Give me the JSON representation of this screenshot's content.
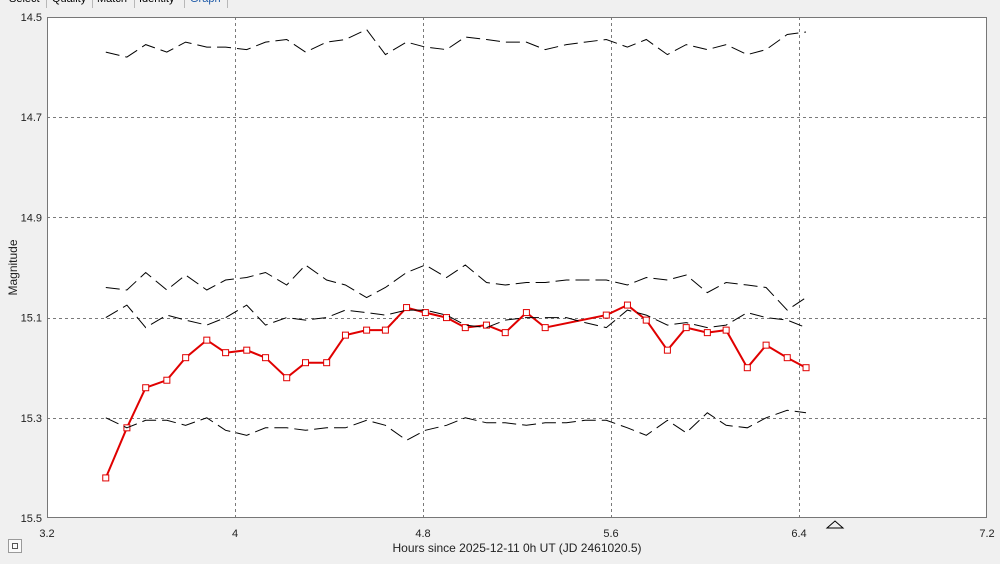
{
  "tabs": [
    {
      "label": "Select",
      "active": false
    },
    {
      "label": "Quality",
      "active": false
    },
    {
      "label": "Match",
      "active": false
    },
    {
      "label": "Identity",
      "active": false
    },
    {
      "label": "Graph",
      "active": true
    }
  ],
  "chart_data": {
    "type": "line",
    "xlabel": "Hours since 2025-12-11 0h UT (JD 2461020.5)",
    "ylabel": "Magnitude",
    "xlim": [
      3.2,
      7.2
    ],
    "ylim": [
      15.5,
      14.5
    ],
    "y_inverted": true,
    "grid": true,
    "x_ticks": [
      "3.2",
      "4",
      "4.8",
      "5.6",
      "6.4",
      "7.2"
    ],
    "y_ticks": [
      "14.5",
      "14.7",
      "14.9",
      "15.1",
      "15.3",
      "15.5"
    ],
    "colors": {
      "target": "#e00000",
      "comparison": "#000000"
    },
    "series": [
      {
        "role": "target",
        "style": "solid-with-square-markers",
        "x": [
          3.45,
          3.54,
          3.62,
          3.71,
          3.79,
          3.88,
          3.96,
          4.05,
          4.13,
          4.22,
          4.3,
          4.39,
          4.47,
          4.56,
          4.64,
          4.73,
          4.81,
          4.9,
          4.98,
          5.07,
          5.15,
          5.24,
          5.32,
          5.58,
          5.67,
          5.75,
          5.84,
          5.92,
          6.01,
          6.09,
          6.18,
          6.26,
          6.35,
          6.43
        ],
        "y": [
          15.42,
          15.32,
          15.24,
          15.225,
          15.18,
          15.145,
          15.17,
          15.165,
          15.18,
          15.22,
          15.19,
          15.19,
          15.135,
          15.125,
          15.125,
          15.08,
          15.09,
          15.1,
          15.12,
          15.115,
          15.13,
          15.09,
          15.12,
          15.095,
          15.075,
          15.105,
          15.165,
          15.12,
          15.13,
          15.125,
          15.2,
          15.155,
          15.18,
          15.2
        ]
      },
      {
        "role": "comparison",
        "style": "dashed",
        "x": [
          3.45,
          3.54,
          3.62,
          3.71,
          3.79,
          3.88,
          3.96,
          4.05,
          4.13,
          4.22,
          4.3,
          4.39,
          4.47,
          4.56,
          4.64,
          4.73,
          4.81,
          4.9,
          4.98,
          5.07,
          5.15,
          5.24,
          5.32,
          5.41,
          5.49,
          5.58,
          5.67,
          5.75,
          5.84,
          5.92,
          6.01,
          6.09,
          6.18,
          6.26,
          6.35,
          6.43
        ],
        "y": [
          14.57,
          14.58,
          14.555,
          14.57,
          14.55,
          14.56,
          14.56,
          14.565,
          14.55,
          14.545,
          14.57,
          14.55,
          14.545,
          14.525,
          14.575,
          14.55,
          14.56,
          14.565,
          14.54,
          14.545,
          14.55,
          14.55,
          14.565,
          14.555,
          14.55,
          14.545,
          14.56,
          14.545,
          14.575,
          14.555,
          14.565,
          14.555,
          14.575,
          14.565,
          14.535,
          14.53
        ]
      },
      {
        "role": "comparison",
        "style": "dashed",
        "x": [
          3.45,
          3.54,
          3.62,
          3.71,
          3.79,
          3.88,
          3.96,
          4.05,
          4.13,
          4.22,
          4.3,
          4.39,
          4.47,
          4.56,
          4.64,
          4.73,
          4.81,
          4.9,
          4.98,
          5.07,
          5.15,
          5.24,
          5.32,
          5.41,
          5.49,
          5.58,
          5.67,
          5.75,
          5.84,
          5.92,
          6.01,
          6.09,
          6.18,
          6.26,
          6.35,
          6.43
        ],
        "y": [
          15.04,
          15.045,
          15.01,
          15.045,
          15.015,
          15.045,
          15.025,
          15.02,
          15.01,
          15.035,
          14.995,
          15.025,
          15.035,
          15.06,
          15.04,
          15.01,
          14.995,
          15.02,
          14.995,
          15.03,
          15.035,
          15.03,
          15.03,
          15.025,
          15.025,
          15.025,
          15.035,
          15.02,
          15.025,
          15.015,
          15.05,
          15.03,
          15.035,
          15.04,
          15.085,
          15.06
        ]
      },
      {
        "role": "comparison",
        "style": "dashed",
        "x": [
          3.45,
          3.54,
          3.62,
          3.71,
          3.79,
          3.88,
          3.96,
          4.05,
          4.13,
          4.22,
          4.3,
          4.39,
          4.47,
          4.56,
          4.64,
          4.73,
          4.81,
          4.9,
          4.98,
          5.07,
          5.15,
          5.24,
          5.32,
          5.41,
          5.49,
          5.58,
          5.67,
          5.75,
          5.84,
          5.92,
          6.01,
          6.09,
          6.18,
          6.26,
          6.35,
          6.43
        ],
        "y": [
          15.1,
          15.075,
          15.12,
          15.095,
          15.105,
          15.115,
          15.1,
          15.075,
          15.115,
          15.1,
          15.105,
          15.1,
          15.085,
          15.09,
          15.095,
          15.085,
          15.085,
          15.095,
          15.115,
          15.12,
          15.105,
          15.1,
          15.1,
          15.1,
          15.11,
          15.12,
          15.085,
          15.095,
          15.115,
          15.11,
          15.12,
          15.115,
          15.09,
          15.1,
          15.105,
          15.12
        ]
      },
      {
        "role": "comparison",
        "style": "dashed",
        "x": [
          3.45,
          3.54,
          3.62,
          3.71,
          3.79,
          3.88,
          3.96,
          4.05,
          4.13,
          4.22,
          4.3,
          4.39,
          4.47,
          4.56,
          4.64,
          4.73,
          4.81,
          4.9,
          4.98,
          5.07,
          5.15,
          5.24,
          5.32,
          5.41,
          5.49,
          5.58,
          5.67,
          5.75,
          5.84,
          5.92,
          6.01,
          6.09,
          6.18,
          6.26,
          6.35,
          6.43
        ],
        "y": [
          15.3,
          15.32,
          15.305,
          15.305,
          15.315,
          15.3,
          15.325,
          15.335,
          15.32,
          15.32,
          15.325,
          15.32,
          15.32,
          15.305,
          15.315,
          15.345,
          15.325,
          15.315,
          15.3,
          15.31,
          15.31,
          15.315,
          15.31,
          15.31,
          15.305,
          15.305,
          15.32,
          15.335,
          15.305,
          15.33,
          15.29,
          15.315,
          15.32,
          15.3,
          15.285,
          15.29
        ]
      }
    ]
  }
}
